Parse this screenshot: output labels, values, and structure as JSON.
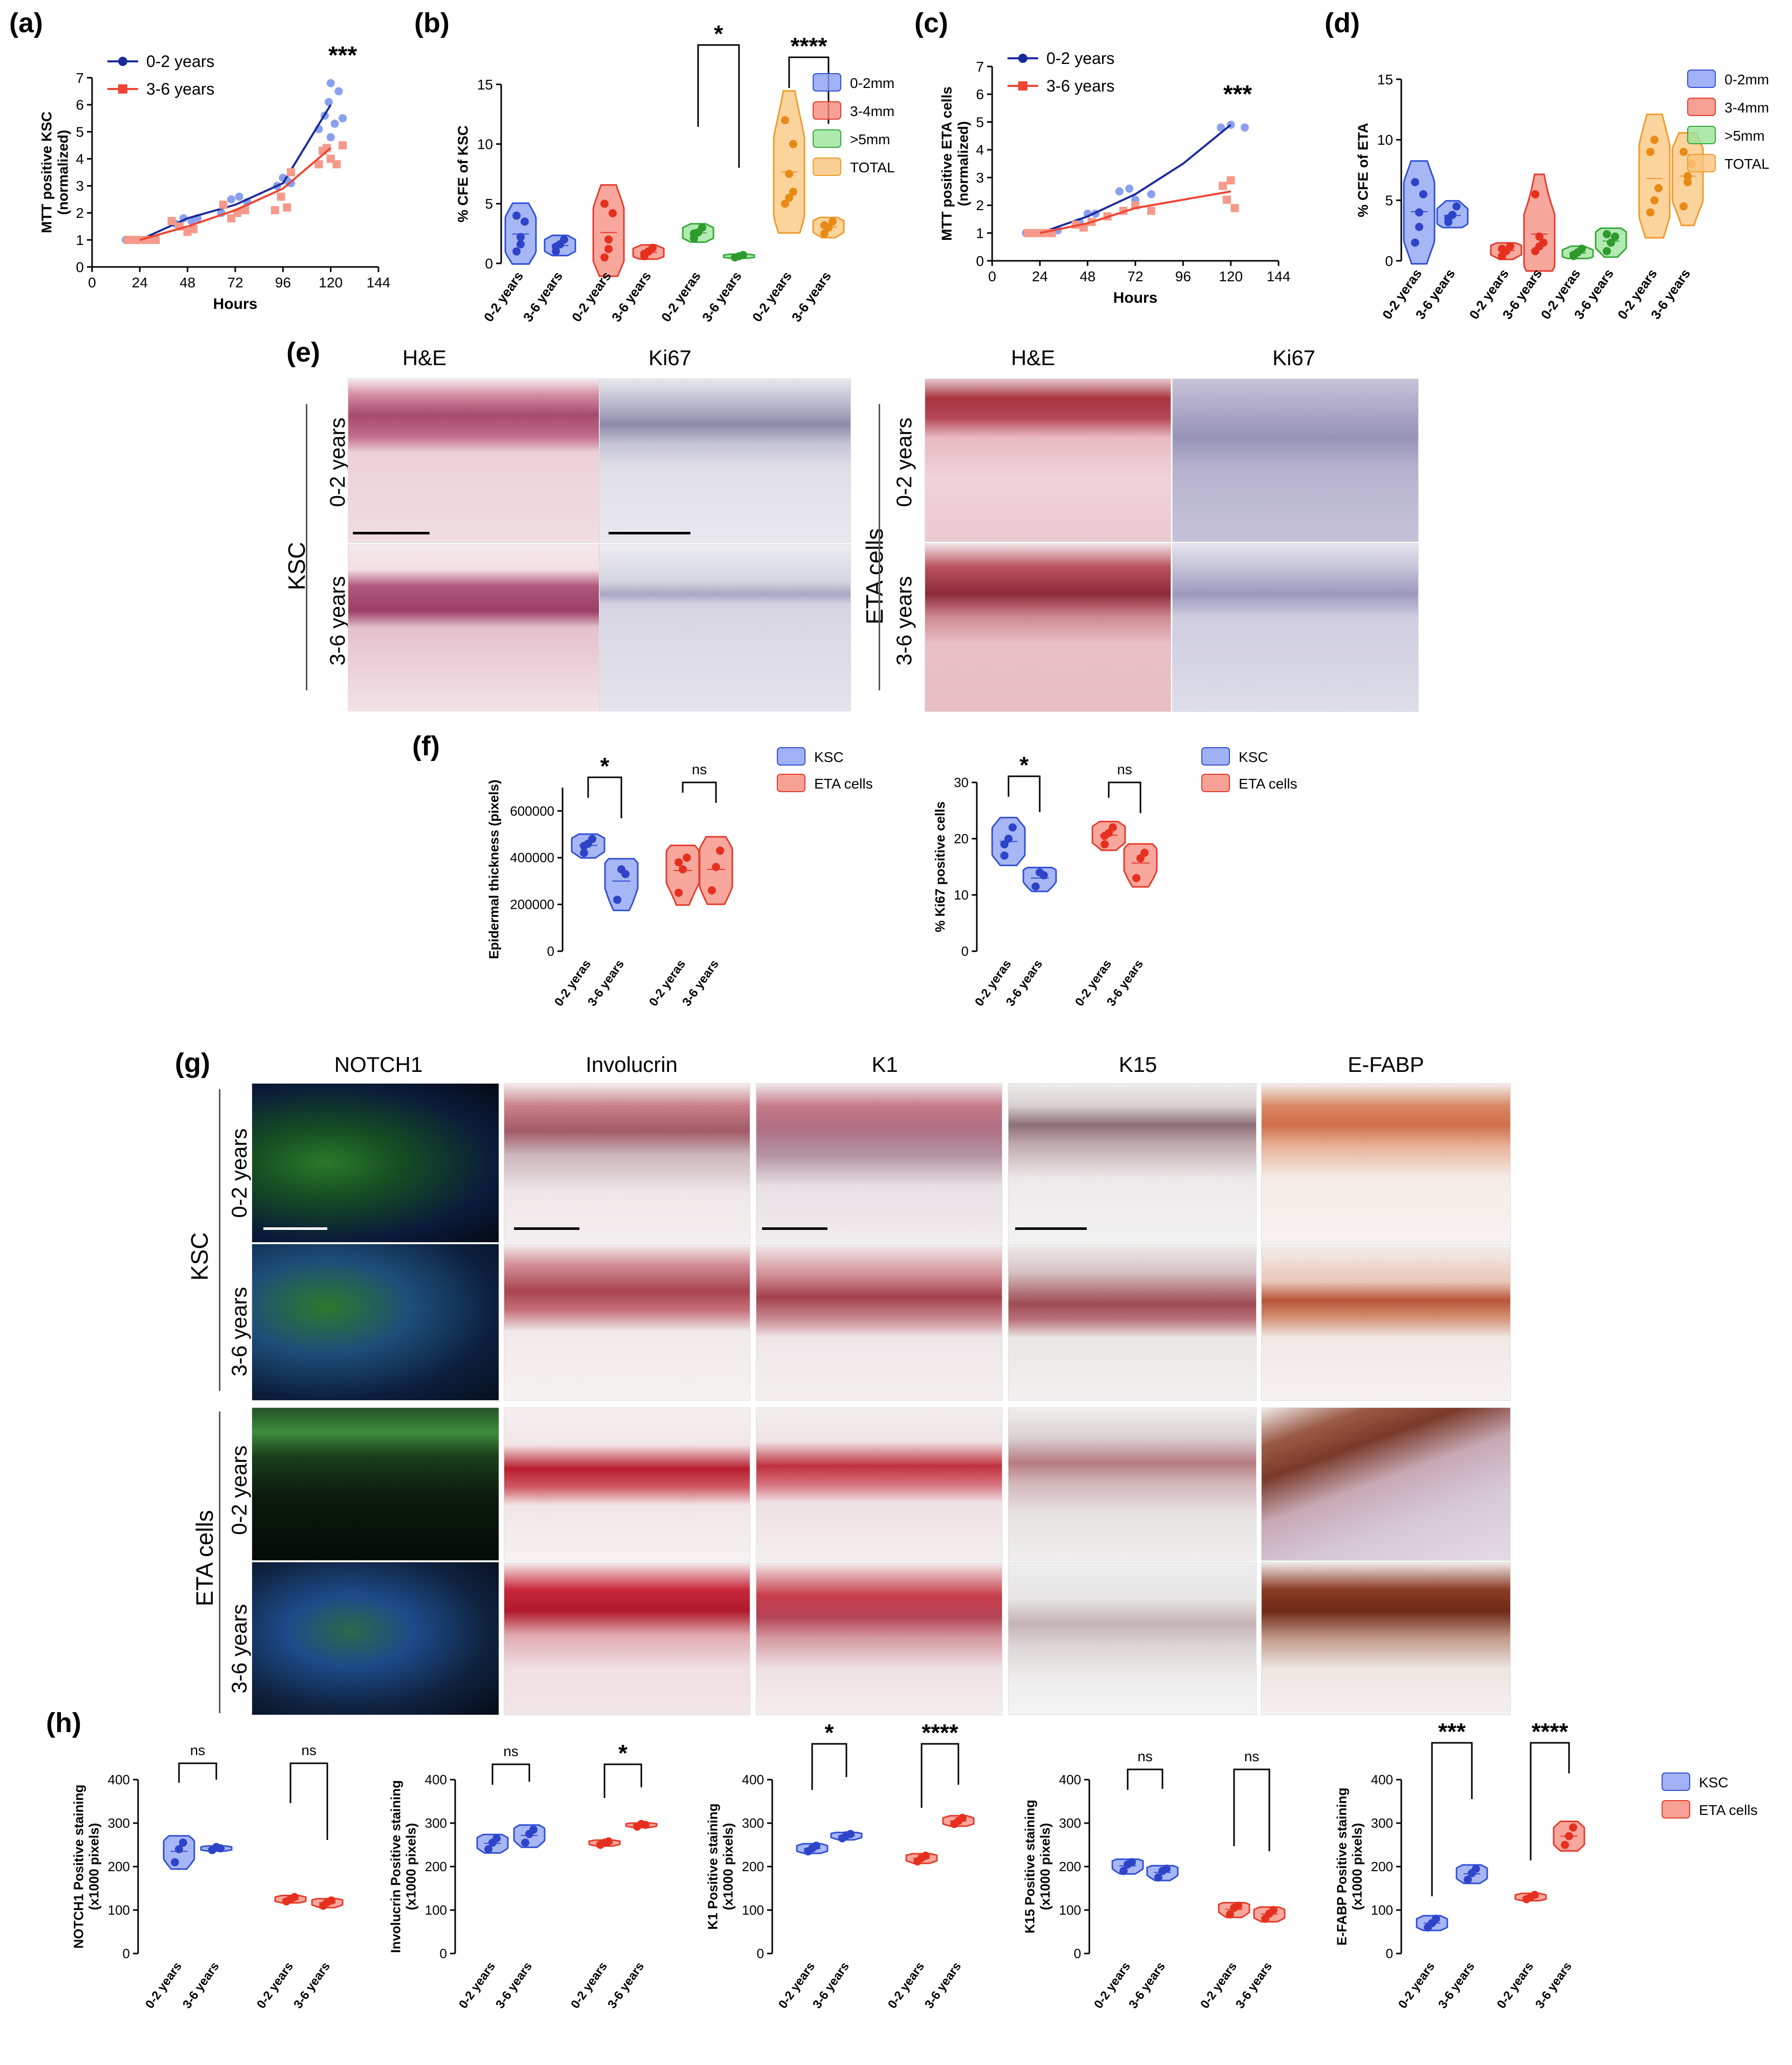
{
  "panels": {
    "a": "(a)",
    "b": "(b)",
    "c": "(c)",
    "d": "(d)",
    "e": "(e)",
    "f": "(f)",
    "g": "(g)",
    "h": "(h)"
  },
  "panel_e": {
    "col_headers": [
      "H&E",
      "Ki67",
      "H&E",
      "Ki67"
    ],
    "group_left": "KSC",
    "group_right": "ETA cells",
    "rows": [
      "0-2 years",
      "3-6 years"
    ]
  },
  "panel_g": {
    "col_headers": [
      "NOTCH1",
      "Involucrin",
      "K1",
      "K15",
      "E-FABP"
    ],
    "group_top": "KSC",
    "group_bottom": "ETA cells",
    "rows": [
      "0-2 years",
      "3-6 years"
    ]
  },
  "colors": {
    "blue": "#2f4fd6",
    "blue_light": "#8aa0ef",
    "red": "#ee4433",
    "red_light": "#f59a8a",
    "green": "#3cb43c",
    "orange": "#f5a13a",
    "dark_blue_line": "#1a2a9c"
  },
  "chart_data": [
    {
      "id": "a",
      "type": "scatter",
      "xlabel": "Hours",
      "ylabel": "MTT positive KSC\n(normalized)",
      "xlim": [
        0,
        144
      ],
      "ylim": [
        0,
        7
      ],
      "xticks": [
        "0",
        "24",
        "48",
        "72",
        "96",
        "120",
        "144"
      ],
      "yticks": [
        "0",
        "1",
        "2",
        "3",
        "4",
        "5",
        "6",
        "7"
      ],
      "annotation": "***",
      "series": [
        {
          "name": "0-2 years",
          "points": [
            [
              17,
              1
            ],
            [
              20,
              1
            ],
            [
              23,
              1
            ],
            [
              26,
              1
            ],
            [
              29,
              1
            ],
            [
              42,
              1.6
            ],
            [
              46,
              1.8
            ],
            [
              50,
              1.7
            ],
            [
              53,
              1.8
            ],
            [
              65,
              2.0
            ],
            [
              70,
              2.5
            ],
            [
              74,
              2.6
            ],
            [
              78,
              2.4
            ],
            [
              93,
              3.0
            ],
            [
              96,
              3.3
            ],
            [
              98,
              3.2
            ],
            [
              100,
              3.1
            ],
            [
              114,
              5.1
            ],
            [
              117,
              5.6
            ],
            [
              119,
              6.1
            ],
            [
              120,
              6.8
            ],
            [
              122,
              5.3
            ],
            [
              124,
              6.5
            ],
            [
              126,
              5.5
            ],
            [
              120,
              4.8
            ]
          ],
          "line": [
            [
              24,
              1
            ],
            [
              48,
              1.8
            ],
            [
              72,
              2.3
            ],
            [
              96,
              3.1
            ],
            [
              120,
              6.0
            ]
          ]
        },
        {
          "name": "3-6 years",
          "points": [
            [
              18,
              1
            ],
            [
              22,
              1
            ],
            [
              25,
              1
            ],
            [
              28,
              1
            ],
            [
              32,
              1
            ],
            [
              40,
              1.7
            ],
            [
              44,
              1.5
            ],
            [
              48,
              1.3
            ],
            [
              51,
              1.4
            ],
            [
              66,
              2.3
            ],
            [
              70,
              1.8
            ],
            [
              73,
              2.0
            ],
            [
              77,
              2.1
            ],
            [
              92,
              2.1
            ],
            [
              95,
              2.6
            ],
            [
              98,
              2.2
            ],
            [
              100,
              3.5
            ],
            [
              114,
              3.8
            ],
            [
              116,
              4.3
            ],
            [
              118,
              4.4
            ],
            [
              120,
              4.0
            ],
            [
              123,
              3.8
            ],
            [
              126,
              4.5
            ]
          ],
          "line": [
            [
              24,
              1
            ],
            [
              48,
              1.5
            ],
            [
              72,
              2.1
            ],
            [
              96,
              2.9
            ],
            [
              120,
              4.4
            ]
          ]
        }
      ]
    },
    {
      "id": "b",
      "type": "violin",
      "ylabel": "% CFE of KSC",
      "ylim": [
        0,
        15
      ],
      "yticks": [
        "0",
        "5",
        "10",
        "15"
      ],
      "categories": [
        "0-2 years",
        "3-6 years",
        "0-2 years",
        "3-6 years",
        "0-2 yeras",
        "3-6 years",
        "0-2 years",
        "3-6 years"
      ],
      "legend": [
        "0-2mm",
        "3-4mm",
        ">5mm",
        "TOTAL"
      ],
      "groups": [
        {
          "name": "0-2mm",
          "a": [
            1.0,
            2.2,
            3.5,
            4.0,
            1.6
          ],
          "b": [
            1.0,
            1.6,
            2.0,
            1.4
          ]
        },
        {
          "name": "3-4mm",
          "a": [
            0.5,
            1.2,
            4.2,
            5.0,
            2.0
          ],
          "b": [
            0.6,
            1.0,
            1.3,
            0.8
          ]
        },
        {
          "name": ">5mm",
          "a": [
            2.1,
            2.6,
            3.0,
            2.5
          ],
          "b": [
            0.5,
            0.6,
            0.7
          ]
        },
        {
          "name": "TOTAL",
          "a": [
            5.0,
            5.5,
            10.0,
            12.0,
            7.5,
            6.0
          ],
          "b": [
            2.5,
            3.0,
            3.5,
            3.2
          ]
        }
      ],
      "brackets": [
        {
          "group": 2,
          "label": "*"
        },
        {
          "group": 3,
          "label": "****"
        }
      ]
    },
    {
      "id": "c",
      "type": "scatter",
      "xlabel": "Hours",
      "ylabel": "MTT positive ETA cells\n(normalized)",
      "xlim": [
        0,
        144
      ],
      "ylim": [
        0,
        7
      ],
      "xticks": [
        "0",
        "24",
        "48",
        "72",
        "96",
        "120",
        "144"
      ],
      "yticks": [
        "0",
        "1",
        "2",
        "3",
        "4",
        "5",
        "6",
        "7"
      ],
      "annotation": "***",
      "series": [
        {
          "name": "0-2 years",
          "points": [
            [
              17,
              1
            ],
            [
              20,
              1
            ],
            [
              23,
              1
            ],
            [
              26,
              1
            ],
            [
              29,
              1
            ],
            [
              33,
              1.1
            ],
            [
              44,
              1.4
            ],
            [
              48,
              1.7
            ],
            [
              52,
              1.7
            ],
            [
              64,
              2.5
            ],
            [
              69,
              2.6
            ],
            [
              72,
              2.2
            ],
            [
              80,
              2.4
            ],
            [
              115,
              4.8
            ],
            [
              120,
              4.9
            ],
            [
              127,
              4.8
            ]
          ],
          "line": [
            [
              24,
              1
            ],
            [
              48,
              1.6
            ],
            [
              72,
              2.4
            ],
            [
              96,
              3.5
            ],
            [
              120,
              4.9
            ]
          ]
        },
        {
          "name": "3-6 years",
          "points": [
            [
              18,
              1
            ],
            [
              22,
              1
            ],
            [
              26,
              1
            ],
            [
              30,
              1
            ],
            [
              42,
              1.3
            ],
            [
              46,
              1.2
            ],
            [
              50,
              1.4
            ],
            [
              58,
              1.6
            ],
            [
              66,
              1.8
            ],
            [
              72,
              2.0
            ],
            [
              80,
              1.8
            ],
            [
              116,
              2.7
            ],
            [
              120,
              2.9
            ],
            [
              122,
              1.9
            ],
            [
              118,
              2.2
            ]
          ],
          "line": [
            [
              24,
              1
            ],
            [
              48,
              1.35
            ],
            [
              72,
              1.9
            ],
            [
              96,
              2.2
            ],
            [
              120,
              2.5
            ]
          ]
        }
      ]
    },
    {
      "id": "d",
      "type": "violin",
      "ylabel": "% CFE of ETA",
      "ylim": [
        0,
        15
      ],
      "yticks": [
        "0",
        "5",
        "10",
        "15"
      ],
      "categories": [
        "0-2 yeras",
        "3-6 years",
        "0-2 years",
        "3-6 years",
        "0-2 yeras",
        "3-6 years",
        "0-2 years",
        "3-6 years"
      ],
      "legend": [
        "0-2mm",
        "3-4mm",
        ">5mm",
        "TOTAL"
      ],
      "groups": [
        {
          "name": "0-2mm",
          "a": [
            1.5,
            2.8,
            5.5,
            6.5,
            4.0
          ],
          "b": [
            3.2,
            3.8,
            4.5,
            3.5
          ]
        },
        {
          "name": "3-4mm",
          "a": [
            0.4,
            0.8,
            1.2,
            1.0
          ],
          "b": [
            0.8,
            1.2,
            1.5,
            5.5,
            2.0
          ]
        },
        {
          "name": ">5mm",
          "a": [
            0.4,
            0.7,
            1.0,
            0.5
          ],
          "b": [
            0.8,
            1.5,
            2.0,
            2.2
          ]
        },
        {
          "name": "TOTAL",
          "a": [
            4.0,
            5.0,
            6.0,
            9.0,
            10.0
          ],
          "b": [
            4.5,
            6.5,
            8.0,
            9.0,
            7.0
          ]
        }
      ]
    },
    {
      "id": "f1",
      "type": "violin",
      "ylabel": "Epidermal thickness (pixels)",
      "ylim": [
        0,
        700000
      ],
      "yticks": [
        "0",
        "200000",
        "400000",
        "600000"
      ],
      "categories": [
        "0-2 yeras",
        "3-6 years",
        "0-2 yeras",
        "3-6 years"
      ],
      "legend": [
        "KSC",
        "ETA cells"
      ],
      "groups": [
        {
          "name": "KSC",
          "a": [
            420000,
            460000,
            480000,
            450000
          ],
          "b": [
            220000,
            350000,
            330000
          ]
        },
        {
          "name": "ETA cells",
          "a": [
            250000,
            350000,
            400000,
            380000
          ],
          "b": [
            260000,
            360000,
            430000
          ]
        }
      ],
      "brackets": [
        {
          "group": 0,
          "label": "*"
        },
        {
          "group": 1,
          "label": "ns"
        }
      ]
    },
    {
      "id": "f2",
      "type": "violin",
      "ylabel": "% Ki67 positive cells",
      "ylim": [
        0,
        30
      ],
      "yticks": [
        "0",
        "10",
        "20",
        "30"
      ],
      "categories": [
        "0-2 yeras",
        "3-6 years",
        "0-2 yeras",
        "3-6 years"
      ],
      "legend": [
        "KSC",
        "ETA cells"
      ],
      "groups": [
        {
          "name": "KSC",
          "a": [
            17,
            20,
            22,
            19
          ],
          "b": [
            11.5,
            14,
            13.5
          ]
        },
        {
          "name": "ETA cells",
          "a": [
            19,
            21,
            22,
            20.5
          ],
          "b": [
            13,
            16.5,
            17.5
          ]
        }
      ],
      "brackets": [
        {
          "group": 0,
          "label": "*"
        },
        {
          "group": 1,
          "label": "ns"
        }
      ]
    },
    {
      "id": "h1",
      "type": "violin",
      "ylabel": "NOTCH1 Positive staining\n(x1000 pixels)",
      "ylim": [
        0,
        400
      ],
      "yticks": [
        "0",
        "100",
        "200",
        "300",
        "400"
      ],
      "categories": [
        "0-2 years",
        "3-6 years",
        "0-2 years",
        "3-6 years"
      ],
      "groups": [
        {
          "name": "KSC",
          "a": [
            210,
            240,
            255
          ],
          "b": [
            238,
            245,
            242
          ]
        },
        {
          "name": "ETA cells",
          "a": [
            120,
            125,
            130
          ],
          "b": [
            110,
            118,
            122
          ]
        }
      ],
      "brackets": [
        {
          "group": 0,
          "label": "ns"
        },
        {
          "group": 1,
          "label": "ns"
        }
      ]
    },
    {
      "id": "h2",
      "type": "violin",
      "ylabel": "Involucrin Positive staining\n(x1000 pixels)",
      "ylim": [
        0,
        400
      ],
      "yticks": [
        "0",
        "100",
        "200",
        "300",
        "400"
      ],
      "categories": [
        "0-2 years",
        "3-6 years",
        "0-2 years",
        "3-6 years"
      ],
      "groups": [
        {
          "name": "KSC",
          "a": [
            240,
            255,
            265
          ],
          "b": [
            255,
            275,
            285
          ]
        },
        {
          "name": "ETA cells",
          "a": [
            250,
            255,
            258
          ],
          "b": [
            292,
            298,
            296
          ]
        }
      ],
      "brackets": [
        {
          "group": 0,
          "label": "ns"
        },
        {
          "group": 1,
          "label": "*"
        }
      ]
    },
    {
      "id": "h3",
      "type": "violin",
      "ylabel": "K1 Positive staining\n(x1000 pixels)",
      "ylim": [
        0,
        400
      ],
      "yticks": [
        "0",
        "100",
        "200",
        "300",
        "400"
      ],
      "categories": [
        "0-2 years",
        "3-6 years",
        "0-2 years",
        "3-6 years"
      ],
      "groups": [
        {
          "name": "KSC",
          "a": [
            235,
            242,
            248
          ],
          "b": [
            265,
            272,
            275
          ]
        },
        {
          "name": "ETA cells",
          "a": [
            212,
            220,
            225
          ],
          "b": [
            298,
            305,
            312
          ]
        }
      ],
      "brackets": [
        {
          "group": 0,
          "label": "*"
        },
        {
          "group": 1,
          "label": "****"
        }
      ]
    },
    {
      "id": "h4",
      "type": "violin",
      "ylabel": "K15 Positive staining\n(x1000 pixels)",
      "ylim": [
        0,
        400
      ],
      "yticks": [
        "0",
        "100",
        "200",
        "300",
        "400"
      ],
      "categories": [
        "0-2 years",
        "3-6 years",
        "0-2 years",
        "3-6 years"
      ],
      "groups": [
        {
          "name": "KSC",
          "a": [
            190,
            205,
            210
          ],
          "b": [
            175,
            190,
            195
          ]
        },
        {
          "name": "ETA cells",
          "a": [
            90,
            105,
            110
          ],
          "b": [
            80,
            92,
            100
          ]
        }
      ],
      "brackets": [
        {
          "group": 0,
          "label": "ns"
        },
        {
          "group": 1,
          "label": "ns"
        }
      ]
    },
    {
      "id": "h5",
      "type": "violin",
      "ylabel": "E-FABP Positive staining\n(x1000 pixels)",
      "ylim": [
        0,
        400
      ],
      "yticks": [
        "0",
        "100",
        "200",
        "300",
        "400"
      ],
      "categories": [
        "0-2 years",
        "3-6 years",
        "0-2 years",
        "3-6 years"
      ],
      "legend": [
        "KSC",
        "ETA cells"
      ],
      "groups": [
        {
          "name": "KSC",
          "a": [
            60,
            70,
            80
          ],
          "b": [
            170,
            185,
            195
          ]
        },
        {
          "name": "ETA cells",
          "a": [
            125,
            130,
            135
          ],
          "b": [
            250,
            270,
            290
          ]
        }
      ],
      "brackets": [
        {
          "group": 0,
          "label": "***"
        },
        {
          "group": 1,
          "label": "****"
        }
      ]
    }
  ]
}
